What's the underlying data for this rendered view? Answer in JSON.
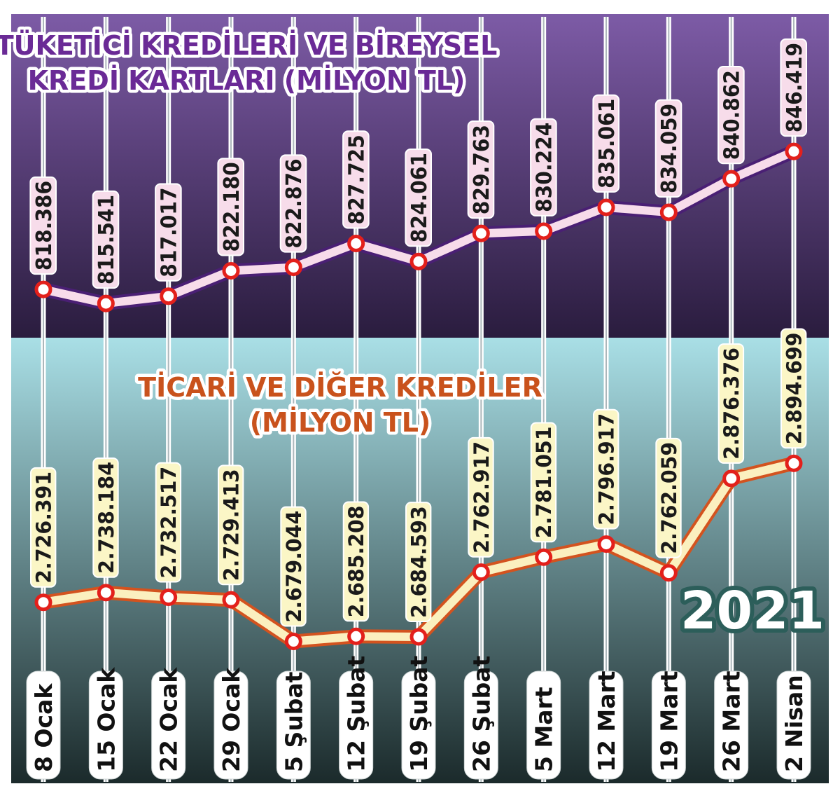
{
  "chart_data": [
    {
      "type": "line",
      "title_lines": [
        "TÜKETİCİ KREDİLERİ VE BİREYSEL",
        "KREDİ KARTLARI (MİLYON TL)"
      ],
      "categories": [
        "8 Ocak",
        "15 Ocak",
        "22 Ocak",
        "29 Ocak",
        "5 Şubat",
        "12 Şubat",
        "19 Şubat",
        "26 Şubat",
        "5 Mart",
        "12 Mart",
        "19 Mart",
        "26 Mart",
        "2 Nisan"
      ],
      "values": [
        818386,
        815541,
        817017,
        822180,
        822876,
        827725,
        824061,
        829763,
        830224,
        835061,
        834059,
        840862,
        846419
      ],
      "value_labels": [
        "818.386",
        "815.541",
        "817.017",
        "822.180",
        "822.876",
        "827.725",
        "824.061",
        "829.763",
        "830.224",
        "835.061",
        "834.059",
        "840.862",
        "846.419"
      ],
      "line_color": "#4a1f74",
      "line_fill_color": "#f7dcea",
      "title_color": "#6a2a96"
    },
    {
      "type": "line",
      "title_lines": [
        "TİCARİ VE DİĞER KREDİLER",
        "(MİLYON TL)"
      ],
      "categories": [
        "8 Ocak",
        "15 Ocak",
        "22 Ocak",
        "29 Ocak",
        "5 Şubat",
        "12 Şubat",
        "19 Şubat",
        "26 Şubat",
        "5 Mart",
        "12 Mart",
        "19 Mart",
        "26 Mart",
        "2 Nisan"
      ],
      "values": [
        2726391,
        2738184,
        2732517,
        2729413,
        2679044,
        2685208,
        2684593,
        2762917,
        2781051,
        2796917,
        2762059,
        2876376,
        2894699
      ],
      "value_labels": [
        "2.726.391",
        "2.738.184",
        "2.732.517",
        "2.729.413",
        "2.679.044",
        "2.685.208",
        "2.684.593",
        "2.762.917",
        "2.781.051",
        "2.796.917",
        "2.762.059",
        "2.876.376",
        "2.894.699"
      ],
      "line_color": "#d3531f",
      "line_fill_color": "#fbf0bf",
      "title_color": "#c9521c"
    }
  ],
  "year_label": "2021",
  "colors": {
    "top_bg_start": "#7d5ba6",
    "top_bg_end": "#2a1c3e",
    "bottom_bg_start": "#a9dfe6",
    "bottom_bg_end": "#1b2a2b",
    "marker_fill": "#ffffff",
    "marker_stroke": "#e3201b",
    "top_label_bg": "#f7dcea",
    "bottom_label_bg": "#fbf6c6",
    "year_color": "#ffffff",
    "year_outline": "#2c5e5a"
  }
}
